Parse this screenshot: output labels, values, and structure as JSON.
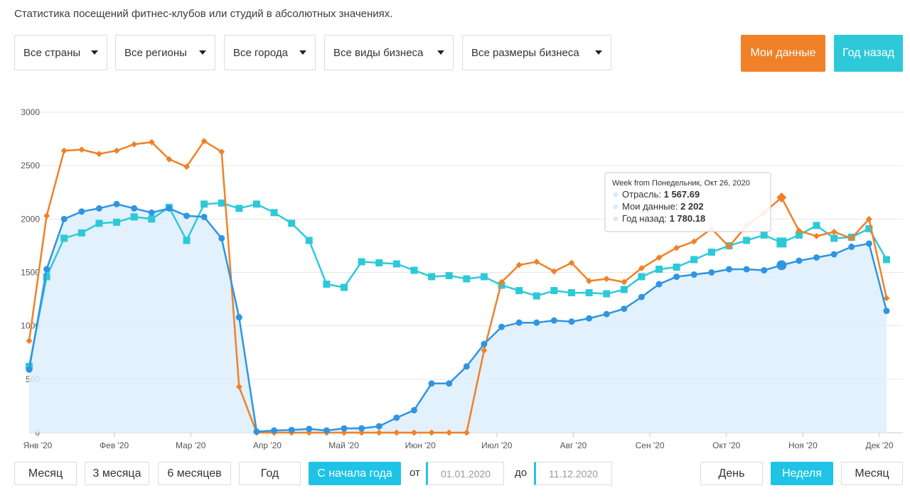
{
  "title": "Статистика посещений фитнес-клубов или студий в абсолютных значениях.",
  "filters": {
    "countries": "Все страны",
    "regions": "Все регионы",
    "cities": "Все города",
    "business_types": "Все виды бизнеса",
    "business_sizes": "Все размеры бизнеса"
  },
  "top_buttons": {
    "my_data": "Мои данные",
    "year_ago": "Год назад",
    "my_data_color": "#f08128",
    "year_ago_color": "#2ec9d8"
  },
  "range_buttons": [
    "Месяц",
    "3 месяца",
    "6 месяцев",
    "Год",
    "С начала года"
  ],
  "range_selected": "С начала года",
  "date_from_label": "от",
  "date_from": "01.01.2020",
  "date_to_label": "до",
  "date_to": "11.12.2020",
  "granularity_buttons": [
    "День",
    "Неделя",
    "Месяц"
  ],
  "granularity_selected": "Неделя",
  "chart_data": {
    "type": "line",
    "y_ticks": [
      "0",
      "500",
      "1000",
      "1500",
      "2000",
      "2500",
      "3000"
    ],
    "ylim": [
      0,
      3000
    ],
    "x_month_labels": [
      "Янв '20",
      "Фев '20",
      "Мар '20",
      "Апр '20",
      "Май '20",
      "Июн '20",
      "Июл '20",
      "Авг '20",
      "Сен '20",
      "Окт '20",
      "Ноя '20",
      "Дек '20"
    ],
    "grid": true,
    "series": [
      {
        "name": "Отрасль",
        "color": "#2f95e2",
        "marker": "circle",
        "filled": true,
        "values": [
          590,
          1530,
          2000,
          2070,
          2100,
          2140,
          2100,
          2060,
          2100,
          2030,
          2020,
          1820,
          1080,
          10,
          20,
          25,
          35,
          20,
          40,
          40,
          60,
          140,
          210,
          460,
          460,
          620,
          830,
          990,
          1030,
          1030,
          1050,
          1040,
          1070,
          1110,
          1160,
          1270,
          1390,
          1460,
          1480,
          1500,
          1530,
          1530,
          1520,
          1567.69,
          1610,
          1640,
          1670,
          1740,
          1770,
          1140
        ]
      },
      {
        "name": "Мои данные",
        "color": "#f08128",
        "marker": "diamond",
        "filled": false,
        "values": [
          860,
          2030,
          2640,
          2650,
          2610,
          2640,
          2700,
          2720,
          2560,
          2490,
          2730,
          2630,
          430,
          0,
          0,
          0,
          0,
          0,
          0,
          0,
          0,
          0,
          0,
          0,
          0,
          0,
          770,
          1410,
          1570,
          1600,
          1510,
          1590,
          1420,
          1440,
          1410,
          1540,
          1640,
          1730,
          1790,
          1910,
          1740,
          1940,
          2060,
          2202,
          1890,
          1840,
          1880,
          1820,
          2000,
          1260
        ]
      },
      {
        "name": "Год назад",
        "color": "#2ec9d8",
        "marker": "square",
        "filled": false,
        "values": [
          620,
          1460,
          1820,
          1870,
          1960,
          1970,
          2020,
          2000,
          2110,
          1800,
          2140,
          2150,
          2100,
          2140,
          2060,
          1960,
          1800,
          1390,
          1360,
          1600,
          1590,
          1580,
          1520,
          1460,
          1470,
          1440,
          1460,
          1380,
          1330,
          1280,
          1330,
          1310,
          1310,
          1300,
          1340,
          1460,
          1530,
          1550,
          1620,
          1690,
          1750,
          1800,
          1850,
          1780.18,
          1850,
          1940,
          1820,
          1830,
          1910,
          1620
        ]
      }
    ],
    "tooltip": {
      "header": "Week from Понедельник, Окт 26, 2020",
      "rows": [
        {
          "label": "Отрасль: ",
          "value": "1 567.69"
        },
        {
          "label": "Мои данные: ",
          "value": "2 202"
        },
        {
          "label": "Год назад: ",
          "value": "1 780.18"
        }
      ],
      "point_index": 43
    }
  }
}
